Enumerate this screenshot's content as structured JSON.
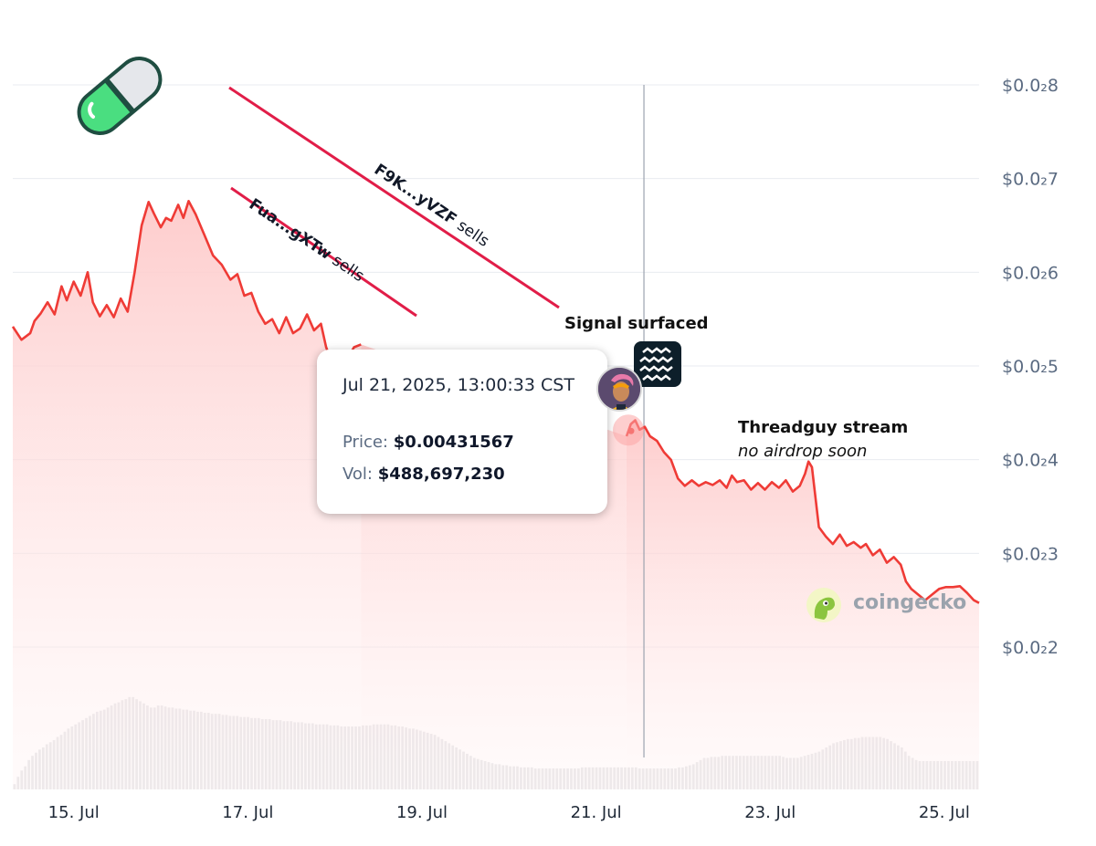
{
  "chart_data": {
    "type": "area",
    "y_axis_side": "right",
    "y_tick_labels": [
      "$0.0₂8",
      "$0.0₂7",
      "$0.0₂6",
      "$0.0₂5",
      "$0.0₂4",
      "$0.0₂3",
      "$0.0₂2"
    ],
    "y_tick_values": [
      0.008,
      0.007,
      0.006,
      0.005,
      0.004,
      0.003,
      0.002
    ],
    "x_tick_labels": [
      "15. Jul",
      "17. Jul",
      "19. Jul",
      "21. Jul",
      "23. Jul",
      "25. Jul"
    ],
    "x_tick_days": [
      15,
      17,
      19,
      21,
      23,
      25
    ],
    "x_range_days": [
      14.3,
      25.4
    ],
    "ylim": [
      0.002,
      0.0085
    ],
    "colors": {
      "line": "#ef3b36",
      "area_top": "#fecaca",
      "volume": "#e6e6e8",
      "grid": "#e8ebf0",
      "crosshair": "#9ca3af",
      "sell_line": "#e11d48"
    },
    "series": [
      {
        "type": "line",
        "points": [
          [
            14.3,
            0.00542
          ],
          [
            14.4,
            0.00528
          ],
          [
            14.5,
            0.00535
          ],
          [
            14.55,
            0.00548
          ],
          [
            14.62,
            0.00556
          ],
          [
            14.7,
            0.00568
          ],
          [
            14.78,
            0.00555
          ],
          [
            14.86,
            0.00585
          ],
          [
            14.92,
            0.0057
          ],
          [
            15.0,
            0.0059
          ],
          [
            15.08,
            0.00575
          ],
          [
            15.16,
            0.006
          ],
          [
            15.22,
            0.00568
          ],
          [
            15.3,
            0.00553
          ],
          [
            15.38,
            0.00565
          ],
          [
            15.46,
            0.00552
          ],
          [
            15.54,
            0.00572
          ],
          [
            15.62,
            0.00558
          ],
          [
            15.7,
            0.006
          ],
          [
            15.78,
            0.0065
          ],
          [
            15.86,
            0.00675
          ],
          [
            15.92,
            0.00663
          ],
          [
            16.0,
            0.00648
          ],
          [
            16.06,
            0.00658
          ],
          [
            16.12,
            0.00655
          ],
          [
            16.2,
            0.00672
          ],
          [
            16.26,
            0.00658
          ],
          [
            16.32,
            0.00676
          ],
          [
            16.4,
            0.00662
          ],
          [
            16.5,
            0.0064
          ],
          [
            16.6,
            0.00618
          ],
          [
            16.7,
            0.00608
          ],
          [
            16.8,
            0.00592
          ],
          [
            16.88,
            0.00598
          ],
          [
            16.96,
            0.00575
          ],
          [
            17.04,
            0.00578
          ],
          [
            17.12,
            0.00558
          ],
          [
            17.2,
            0.00545
          ],
          [
            17.28,
            0.0055
          ],
          [
            17.36,
            0.00535
          ],
          [
            17.44,
            0.00552
          ],
          [
            17.52,
            0.00535
          ],
          [
            17.6,
            0.0054
          ],
          [
            17.68,
            0.00555
          ],
          [
            17.76,
            0.00538
          ],
          [
            17.84,
            0.00545
          ],
          [
            17.9,
            0.0052
          ],
          [
            17.96,
            0.00505
          ],
          [
            18.0,
            0.00495
          ],
          [
            18.06,
            0.005
          ],
          [
            18.14,
            0.00507
          ],
          [
            18.22,
            0.0052
          ],
          [
            18.3,
            0.00523
          ]
        ]
      },
      {
        "type": "line",
        "points": [
          [
            21.35,
            0.00425
          ],
          [
            21.4,
            0.00438
          ],
          [
            21.45,
            0.00442
          ],
          [
            21.5,
            0.00432
          ],
          [
            21.56,
            0.00435
          ],
          [
            21.62,
            0.00425
          ],
          [
            21.7,
            0.0042
          ],
          [
            21.78,
            0.00408
          ],
          [
            21.86,
            0.004
          ],
          [
            21.94,
            0.0038
          ],
          [
            22.02,
            0.00372
          ],
          [
            22.1,
            0.00378
          ],
          [
            22.18,
            0.00372
          ],
          [
            22.26,
            0.00376
          ],
          [
            22.34,
            0.00373
          ],
          [
            22.42,
            0.00378
          ],
          [
            22.5,
            0.0037
          ],
          [
            22.56,
            0.00383
          ],
          [
            22.62,
            0.00376
          ],
          [
            22.7,
            0.00378
          ],
          [
            22.78,
            0.00368
          ],
          [
            22.86,
            0.00375
          ],
          [
            22.94,
            0.00368
          ],
          [
            23.02,
            0.00376
          ],
          [
            23.1,
            0.0037
          ],
          [
            23.18,
            0.00378
          ],
          [
            23.26,
            0.00366
          ],
          [
            23.34,
            0.00372
          ],
          [
            23.4,
            0.00385
          ],
          [
            23.44,
            0.00398
          ],
          [
            23.48,
            0.00392
          ],
          [
            23.52,
            0.0036
          ],
          [
            23.56,
            0.00328
          ],
          [
            23.64,
            0.00318
          ],
          [
            23.72,
            0.0031
          ],
          [
            23.8,
            0.0032
          ],
          [
            23.88,
            0.00308
          ],
          [
            23.96,
            0.00312
          ],
          [
            24.04,
            0.00306
          ],
          [
            24.1,
            0.0031
          ],
          [
            24.18,
            0.00298
          ],
          [
            24.26,
            0.00304
          ],
          [
            24.34,
            0.0029
          ],
          [
            24.42,
            0.00296
          ],
          [
            24.5,
            0.00288
          ],
          [
            24.56,
            0.0027
          ],
          [
            24.62,
            0.00262
          ],
          [
            24.7,
            0.00256
          ],
          [
            24.78,
            0.0025
          ],
          [
            24.86,
            0.00256
          ],
          [
            24.94,
            0.00262
          ],
          [
            25.02,
            0.00264
          ],
          [
            25.1,
            0.00264
          ],
          [
            25.18,
            0.00265
          ],
          [
            25.26,
            0.00258
          ],
          [
            25.34,
            0.0025
          ],
          [
            25.4,
            0.00247
          ]
        ]
      }
    ],
    "volume": [
      0.05,
      0.12,
      0.18,
      0.22,
      0.28,
      0.32,
      0.35,
      0.38,
      0.4,
      0.43,
      0.45,
      0.47,
      0.5,
      0.52,
      0.55,
      0.58,
      0.6,
      0.62,
      0.64,
      0.66,
      0.68,
      0.7,
      0.72,
      0.74,
      0.75,
      0.76,
      0.78,
      0.8,
      0.82,
      0.83,
      0.85,
      0.86,
      0.88,
      0.88,
      0.86,
      0.84,
      0.82,
      0.8,
      0.78,
      0.78,
      0.8,
      0.8,
      0.79,
      0.78,
      0.78,
      0.77,
      0.77,
      0.76,
      0.76,
      0.75,
      0.75,
      0.74,
      0.74,
      0.73,
      0.73,
      0.72,
      0.72,
      0.72,
      0.71,
      0.71,
      0.7,
      0.7,
      0.7,
      0.69,
      0.69,
      0.69,
      0.68,
      0.68,
      0.68,
      0.67,
      0.67,
      0.67,
      0.66,
      0.66,
      0.66,
      0.65,
      0.65,
      0.65,
      0.64,
      0.64,
      0.64,
      0.63,
      0.63,
      0.63,
      0.62,
      0.62,
      0.62,
      0.62,
      0.61,
      0.61,
      0.61,
      0.6,
      0.6,
      0.6,
      0.6,
      0.6,
      0.6,
      0.61,
      0.61,
      0.61,
      0.62,
      0.62,
      0.62,
      0.62,
      0.62,
      0.61,
      0.61,
      0.6,
      0.6,
      0.59,
      0.58,
      0.58,
      0.57,
      0.56,
      0.55,
      0.54,
      0.53,
      0.52,
      0.5,
      0.48,
      0.46,
      0.44,
      0.42,
      0.4,
      0.38,
      0.36,
      0.34,
      0.32,
      0.3,
      0.29,
      0.28,
      0.27,
      0.26,
      0.25,
      0.24,
      0.24,
      0.23,
      0.23,
      0.22,
      0.22,
      0.22,
      0.21,
      0.21,
      0.21,
      0.21,
      0.2,
      0.2,
      0.2,
      0.2,
      0.2,
      0.2,
      0.2,
      0.2,
      0.2,
      0.2,
      0.2,
      0.2,
      0.2,
      0.21,
      0.21,
      0.21,
      0.21,
      0.21,
      0.21,
      0.21,
      0.21,
      0.21,
      0.21,
      0.21,
      0.21,
      0.21,
      0.21,
      0.21,
      0.21,
      0.2,
      0.2,
      0.2,
      0.2,
      0.2,
      0.2,
      0.2,
      0.2,
      0.2,
      0.2,
      0.2,
      0.21,
      0.21,
      0.22,
      0.23,
      0.24,
      0.26,
      0.28,
      0.3,
      0.3,
      0.31,
      0.31,
      0.31,
      0.32,
      0.32,
      0.32,
      0.32,
      0.32,
      0.32,
      0.32,
      0.32,
      0.32,
      0.32,
      0.32,
      0.32,
      0.32,
      0.32,
      0.32,
      0.32,
      0.32,
      0.31,
      0.3,
      0.3,
      0.3,
      0.3,
      0.31,
      0.32,
      0.33,
      0.34,
      0.35,
      0.36,
      0.38,
      0.4,
      0.42,
      0.44,
      0.45,
      0.46,
      0.47,
      0.48,
      0.48,
      0.49,
      0.49,
      0.5,
      0.5,
      0.5,
      0.5,
      0.5,
      0.5,
      0.49,
      0.48,
      0.46,
      0.44,
      0.42,
      0.4,
      0.36,
      0.32,
      0.3,
      0.28,
      0.27,
      0.27,
      0.27,
      0.27,
      0.27,
      0.27,
      0.27,
      0.27,
      0.27,
      0.27,
      0.27,
      0.27,
      0.27,
      0.27,
      0.27,
      0.27,
      0.27
    ]
  },
  "tooltip": {
    "date": "Jul 21, 2025, 13:00:33 CST",
    "price_label": "Price:",
    "price_value": "$0.00431567",
    "vol_label": "Vol:",
    "vol_value": "$488,697,230",
    "crosshair_day": 21.55
  },
  "annotations": {
    "sell_1": {
      "wallet": "F9K...yVZF",
      "action": "sells"
    },
    "sell_2": {
      "wallet": "Fua...gXTw",
      "action": "sells"
    },
    "signal": "Signal surfaced",
    "stream_title": "Threadguy stream",
    "stream_sub": "no airdrop soon"
  },
  "watermark": {
    "text": "coingecko",
    "icon": "gecko-icon"
  },
  "icons": {
    "pill": "pill-icon",
    "avatar": "avatar-icon",
    "signal": "wave-logo-icon"
  }
}
